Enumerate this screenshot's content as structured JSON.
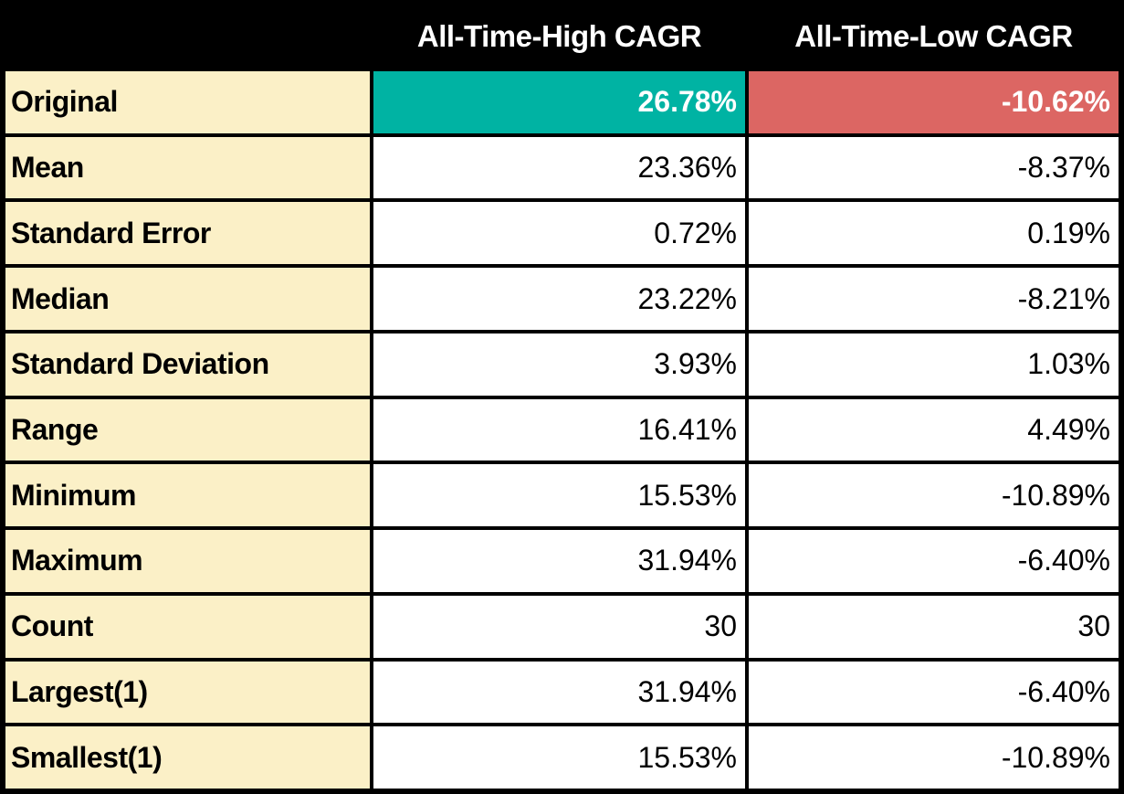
{
  "table": {
    "columns": [
      "",
      "All-Time-High CAGR",
      "All-Time-Low CAGR"
    ],
    "rows": [
      {
        "label": "Original",
        "high": "26.78%",
        "low": "-10.62%",
        "highlight": true
      },
      {
        "label": "Mean",
        "high": "23.36%",
        "low": "-8.37%",
        "highlight": false
      },
      {
        "label": "Standard Error",
        "high": "0.72%",
        "low": "0.19%",
        "highlight": false
      },
      {
        "label": "Median",
        "high": "23.22%",
        "low": "-8.21%",
        "highlight": false
      },
      {
        "label": "Standard Deviation",
        "high": "3.93%",
        "low": "1.03%",
        "highlight": false
      },
      {
        "label": "Range",
        "high": "16.41%",
        "low": "4.49%",
        "highlight": false
      },
      {
        "label": "Minimum",
        "high": "15.53%",
        "low": "-10.89%",
        "highlight": false
      },
      {
        "label": "Maximum",
        "high": "31.94%",
        "low": "-6.40%",
        "highlight": false
      },
      {
        "label": "Count",
        "high": "30",
        "low": "30",
        "highlight": false
      },
      {
        "label": "Largest(1)",
        "high": "31.94%",
        "low": "-6.40%",
        "highlight": false
      },
      {
        "label": "Smallest(1)",
        "high": "15.53%",
        "low": "-10.89%",
        "highlight": false
      }
    ]
  },
  "colors": {
    "grid": "#000000",
    "header_bg": "#000000",
    "header_text": "#ffffff",
    "label_bg": "#fbf0c7",
    "highlight_high": "#00b3a3",
    "highlight_low": "#dc6663"
  },
  "chart_data": {
    "type": "table",
    "columns": [
      "",
      "All-Time-High CAGR",
      "All-Time-Low CAGR"
    ],
    "rows": [
      [
        "Original",
        "26.78%",
        "-10.62%"
      ],
      [
        "Mean",
        "23.36%",
        "-8.37%"
      ],
      [
        "Standard Error",
        "0.72%",
        "0.19%"
      ],
      [
        "Median",
        "23.22%",
        "-8.21%"
      ],
      [
        "Standard Deviation",
        "3.93%",
        "1.03%"
      ],
      [
        "Range",
        "16.41%",
        "4.49%"
      ],
      [
        "Minimum",
        "15.53%",
        "-10.89%"
      ],
      [
        "Maximum",
        "31.94%",
        "-6.40%"
      ],
      [
        "Count",
        "30",
        "30"
      ],
      [
        "Largest(1)",
        "31.94%",
        "-6.40%"
      ],
      [
        "Smallest(1)",
        "15.53%",
        "-10.89%"
      ]
    ],
    "notes": {
      "highlighted_row": "Original",
      "highlight_high_color": "#00b3a3",
      "highlight_low_color": "#dc6663"
    }
  }
}
